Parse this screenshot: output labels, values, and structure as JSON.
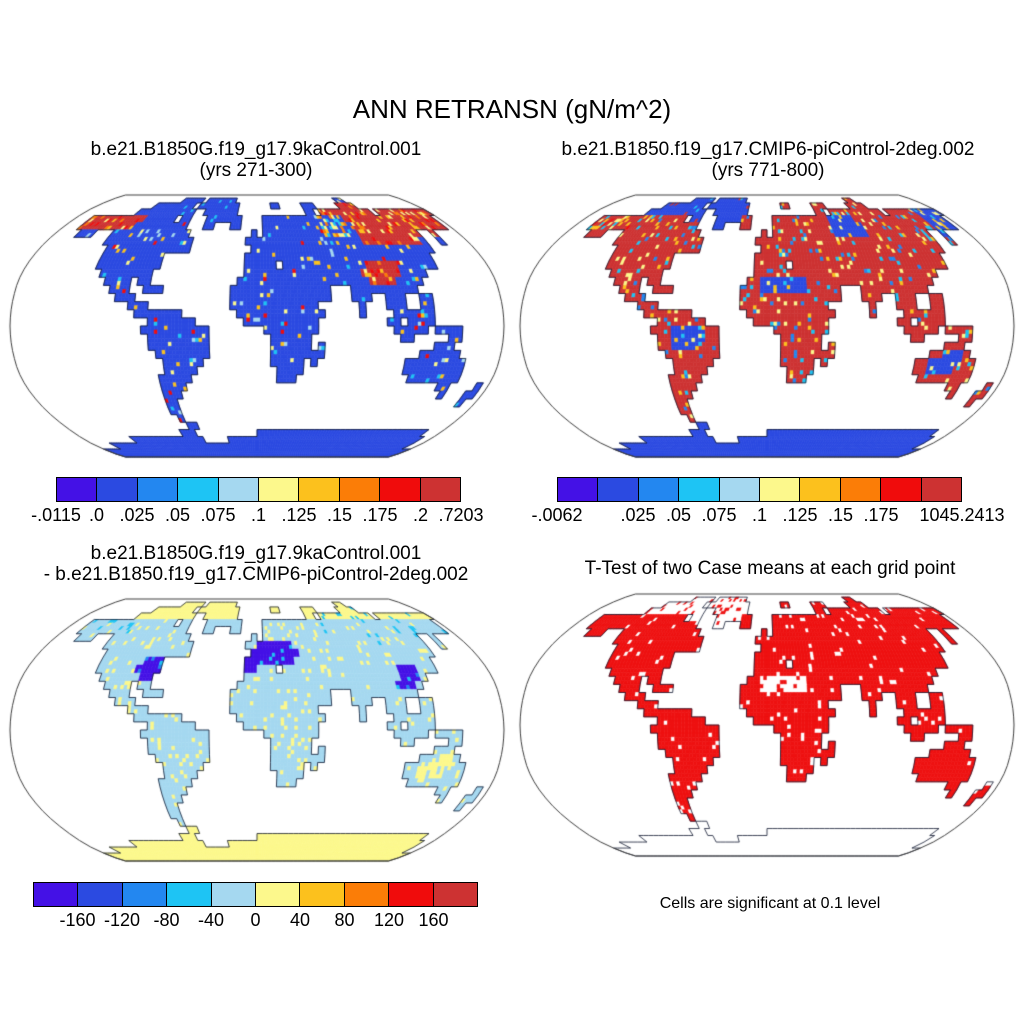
{
  "figure": {
    "title": "ANN RETRANSN (gN/m^2)"
  },
  "panels": [
    {
      "id": "case1",
      "title_lines": [
        "b.e21.B1850G.f19_g17.9kaControl.001",
        "(yrs 271-300)"
      ],
      "colorbar": {
        "labels": [
          "-.0115",
          ".0",
          ".025",
          ".05",
          ".075",
          ".1",
          ".125",
          ".15",
          ".175",
          ".2",
          ".7203"
        ],
        "positions": [
          0,
          1,
          2,
          3,
          4,
          5,
          6,
          7,
          8,
          9,
          10
        ]
      },
      "map": {
        "seed": 11,
        "base": {
          "L": "#2b4ae1",
          "n": "#cd3232",
          "t": "#cd3232",
          "k": "#cd3232",
          "p": "#cd3232",
          "w": "#2b4ae1",
          "e": "#2b4ae1",
          "f": "#2b4ae1",
          "h": "#2b4ae1",
          "g": "#2b4ae1",
          "s": "#2b4ae1",
          "z": "#2b4ae1",
          "u": "#2b4ae1",
          "a": "#2b4ae1"
        },
        "noise": [
          {
            "classes": "Lefhszu",
            "frac": 0.07,
            "colors": [
              "#1ec4f4",
              "#a5d8f0",
              "#fcf88c",
              "#fcc11d",
              "#f00c0c"
            ]
          },
          {
            "classes": "w",
            "frac": 0.45,
            "colors": [
              "#fcc11d",
              "#fcf88c",
              "#fb7d07",
              "#1ec4f4"
            ]
          },
          {
            "classes": "ntpk",
            "frac": 0.3,
            "colors": [
              "#fb7d07",
              "#fcc11d",
              "#f00c0c",
              "#fcf88c"
            ]
          },
          {
            "classes": "g",
            "frac": 0.04,
            "colors": [
              "#1ec4f4"
            ]
          }
        ]
      }
    },
    {
      "id": "case2",
      "title_lines": [
        "b.e21.B1850.f19_g17.CMIP6-piControl-2deg.002",
        "(yrs 771-800)"
      ],
      "colorbar": {
        "labels": [
          "-.0062",
          ".025",
          ".05",
          ".075",
          ".1",
          ".125",
          ".15",
          ".175",
          "1045.2413"
        ],
        "positions": [
          0,
          2,
          3,
          4,
          5,
          6,
          7,
          8,
          10
        ]
      },
      "map": {
        "seed": 22,
        "base": {
          "L": "#cd3232",
          "n": "#cd3232",
          "t": "#cd3232",
          "k": "#2b4ae1",
          "p": "#cd3232",
          "w": "#2b4ae1",
          "e": "#cd3232",
          "f": "#cd3232",
          "h": "#cd3232",
          "g": "#2b4ae1",
          "s": "#2b4ae1",
          "z": "#2b4ae1",
          "u": "#2b4ae1",
          "a": "#2b4ae1"
        },
        "noise": [
          {
            "classes": "Lefhtp",
            "frac": 0.13,
            "colors": [
              "#1ec4f4",
              "#fcf88c",
              "#fcc11d",
              "#2387f0"
            ]
          },
          {
            "classes": "n",
            "frac": 0.4,
            "colors": [
              "#1ec4f4",
              "#fcf88c",
              "#fcc11d",
              "#f00c0c"
            ]
          },
          {
            "classes": "szuwk",
            "frac": 0.17,
            "colors": [
              "#1ec4f4",
              "#fcf88c",
              "#fcc11d"
            ]
          },
          {
            "classes": "g",
            "frac": 0.06,
            "colors": [
              "#1ec4f4",
              "#cd3232"
            ]
          }
        ]
      }
    },
    {
      "id": "diff",
      "title_lines": [
        "b.e21.B1850G.f19_g17.9kaControl.001",
        "- b.e21.B1850.f19_g17.CMIP6-piControl-2deg.002"
      ],
      "colorbar": {
        "labels": [
          "-160",
          "-120",
          "-80",
          "-40",
          "0",
          "40",
          "80",
          "120",
          "160"
        ],
        "positions": [
          1,
          2,
          3,
          4,
          5,
          6,
          7,
          8,
          9
        ]
      },
      "map": {
        "seed": 33,
        "base": {
          "L": "#a5d8f0",
          "n": "#a5d8f0",
          "t": "#a5d8f0",
          "k": "#a5d8f0",
          "p": "#a5d8f0",
          "w": "#a5d8f0",
          "e": "#4411e6",
          "f": "#4411e6",
          "h": "#4411e6",
          "g": "#a5d8f0",
          "s": "#a5d8f0",
          "z": "#a5d8f0",
          "u": "#fcf88c",
          "a": "#fcf88c"
        },
        "latRule": {
          "minLat": 70,
          "classes": "Lgtkn",
          "color": "#fcf88c"
        },
        "noise": [
          {
            "classes": "Lsz",
            "frac": 0.1,
            "colors": [
              "#fcf88c"
            ]
          },
          {
            "classes": "tkwn",
            "frac": 0.12,
            "colors": [
              "#fcf88c",
              "#1ec4f4"
            ]
          },
          {
            "classes": "efh",
            "frac": 0.14,
            "colors": [
              "#2387f0",
              "#1ec4f4"
            ]
          },
          {
            "classes": "u",
            "frac": 0.25,
            "colors": [
              "#a5d8f0"
            ]
          }
        ]
      }
    },
    {
      "id": "ttest",
      "title_lines": [
        "T-Test of two Case means at each grid point"
      ],
      "caption": "Cells are significant at 0.1 level",
      "map": {
        "seed": 44,
        "base": {
          "L": "#ee1111",
          "n": "#ee1111",
          "t": "#ee1111",
          "k": "#ee1111",
          "p": "#ee1111",
          "w": "#ee1111",
          "e": "#ee1111",
          "f": "#ee1111",
          "h": "#ee1111",
          "g": "#ffffff",
          "s": "#ffffff",
          "z": "#ee1111",
          "u": "#ee1111",
          "a": "#ffffff"
        },
        "noise": [
          {
            "classes": "Lntkpwefhzu",
            "frac": 0.06,
            "colors": [
              "#ffffff"
            ]
          },
          {
            "classes": "gs",
            "frac": 0.2,
            "colors": [
              "#ee1111"
            ]
          }
        ]
      }
    }
  ],
  "palette": [
    "#4411e6",
    "#2b4ae1",
    "#2387f0",
    "#1ec4f4",
    "#a5d8f0",
    "#fcf88c",
    "#fcc11d",
    "#fb7d07",
    "#f00c0c",
    "#cd3232"
  ],
  "map_colors": {
    "coastline": "#101830",
    "projection_border": "#3c3c3c",
    "ocean": "#ffffff"
  },
  "land_rows": [
    [],
    [
      [
        18,
        22,
        "g"
      ],
      [
        24,
        30,
        "g"
      ],
      [
        55,
        56,
        "L"
      ]
    ],
    [
      [
        13,
        21,
        "g"
      ],
      [
        23,
        31,
        "g"
      ],
      [
        39,
        40,
        "L"
      ],
      [
        46,
        48,
        "L"
      ],
      [
        54,
        57,
        "t"
      ]
    ],
    [
      [
        11,
        22,
        "g"
      ],
      [
        25,
        31,
        "g"
      ],
      [
        46,
        47,
        "L"
      ],
      [
        49,
        59,
        "t"
      ],
      [
        61,
        66,
        "t"
      ],
      [
        67,
        71,
        "k"
      ]
    ],
    [
      [
        3,
        13,
        "n"
      ],
      [
        14,
        19,
        "L"
      ],
      [
        21,
        22,
        "g"
      ],
      [
        26,
        30,
        "g"
      ],
      [
        31,
        32,
        "L"
      ],
      [
        37,
        47,
        "L"
      ],
      [
        48,
        52,
        "w"
      ],
      [
        53,
        66,
        "t"
      ],
      [
        67,
        70,
        "k"
      ]
    ],
    [
      [
        3,
        12,
        "n"
      ],
      [
        13,
        22,
        "L"
      ],
      [
        26,
        27,
        "g"
      ],
      [
        31,
        32,
        "L"
      ],
      [
        37,
        47,
        "L"
      ],
      [
        48,
        53,
        "w"
      ],
      [
        54,
        66,
        "t"
      ],
      [
        67,
        70,
        "k"
      ]
    ],
    [
      [
        4,
        6,
        "L"
      ],
      [
        10,
        23,
        "L"
      ],
      [
        35,
        35,
        "L"
      ],
      [
        37,
        47,
        "L"
      ],
      [
        48,
        53,
        "w"
      ],
      [
        54,
        64,
        "t"
      ],
      [
        67,
        67,
        "k"
      ]
    ],
    [
      [
        10,
        24,
        "L"
      ],
      [
        34,
        35,
        "L"
      ],
      [
        36,
        41,
        "e"
      ],
      [
        42,
        53,
        "L"
      ],
      [
        54,
        63,
        "t"
      ],
      [
        64,
        64,
        "L"
      ],
      [
        67,
        67,
        "L"
      ]
    ],
    [
      [
        11,
        24,
        "L"
      ],
      [
        35,
        42,
        "e"
      ],
      [
        43,
        64,
        "L"
      ]
    ],
    [
      [
        11,
        17,
        "L"
      ],
      [
        18,
        20,
        "f"
      ],
      [
        34,
        41,
        "e"
      ],
      [
        42,
        63,
        "L"
      ]
    ],
    [
      [
        11,
        16,
        "L"
      ],
      [
        17,
        20,
        "f"
      ],
      [
        34,
        35,
        "e"
      ],
      [
        36,
        38,
        "L"
      ],
      [
        40,
        52,
        "L"
      ],
      [
        53,
        57,
        "p"
      ],
      [
        58,
        60,
        "h"
      ],
      [
        61,
        63,
        "L"
      ]
    ],
    [
      [
        12,
        17,
        "L"
      ],
      [
        18,
        19,
        "f"
      ],
      [
        34,
        51,
        "L"
      ],
      [
        52,
        57,
        "p"
      ],
      [
        58,
        60,
        "h"
      ],
      [
        61,
        61,
        "L"
      ]
    ],
    [
      [
        13,
        16,
        "L"
      ],
      [
        18,
        19,
        "L"
      ],
      [
        33,
        34,
        "L"
      ],
      [
        35,
        41,
        "s"
      ],
      [
        42,
        52,
        "L"
      ],
      [
        53,
        56,
        "p"
      ],
      [
        57,
        59,
        "h"
      ],
      [
        60,
        60,
        "L"
      ]
    ],
    [
      [
        14,
        16,
        "L"
      ],
      [
        19,
        21,
        "L"
      ],
      [
        32,
        34,
        "L"
      ],
      [
        35,
        41,
        "s"
      ],
      [
        42,
        46,
        "L"
      ],
      [
        50,
        59,
        "L"
      ]
    ],
    [
      [
        15,
        17,
        "L"
      ],
      [
        32,
        46,
        "L"
      ],
      [
        50,
        52,
        "L"
      ],
      [
        55,
        57,
        "L"
      ],
      [
        60,
        61,
        "L"
      ]
    ],
    [
      [
        17,
        19,
        "L"
      ],
      [
        32,
        44,
        "L"
      ],
      [
        51,
        51,
        "L"
      ],
      [
        55,
        57,
        "L"
      ],
      [
        60,
        61,
        "L"
      ]
    ],
    [
      [
        18,
        24,
        "L"
      ],
      [
        33,
        45,
        "L"
      ],
      [
        51,
        51,
        "L"
      ],
      [
        56,
        61,
        "L"
      ]
    ],
    [
      [
        20,
        26,
        "L"
      ],
      [
        34,
        44,
        "L"
      ],
      [
        55,
        56,
        "L"
      ],
      [
        58,
        61,
        "L"
      ]
    ],
    [
      [
        19,
        21,
        "L"
      ],
      [
        22,
        26,
        "z"
      ],
      [
        27,
        28,
        "L"
      ],
      [
        37,
        44,
        "L"
      ],
      [
        56,
        60,
        "L"
      ],
      [
        62,
        65,
        "L"
      ]
    ],
    [
      [
        20,
        21,
        "L"
      ],
      [
        22,
        26,
        "z"
      ],
      [
        27,
        28,
        "L"
      ],
      [
        38,
        43,
        "L"
      ],
      [
        57,
        58,
        "L"
      ],
      [
        64,
        65,
        "L"
      ]
    ],
    [
      [
        20,
        21,
        "L"
      ],
      [
        22,
        25,
        "z"
      ],
      [
        26,
        28,
        "L"
      ],
      [
        38,
        43,
        "L"
      ],
      [
        45,
        45,
        "L"
      ],
      [
        62,
        64,
        "L"
      ]
    ],
    [
      [
        21,
        28,
        "L"
      ],
      [
        38,
        45,
        "L"
      ],
      [
        60,
        61,
        "L"
      ],
      [
        62,
        64,
        "u"
      ],
      [
        65,
        65,
        "L"
      ]
    ],
    [
      [
        22,
        27,
        "L"
      ],
      [
        38,
        42,
        "L"
      ],
      [
        44,
        44,
        "L"
      ],
      [
        58,
        59,
        "L"
      ],
      [
        60,
        64,
        "u"
      ],
      [
        65,
        66,
        "L"
      ]
    ],
    [
      [
        22,
        26,
        "L"
      ],
      [
        39,
        42,
        "L"
      ],
      [
        58,
        59,
        "L"
      ],
      [
        60,
        63,
        "u"
      ],
      [
        64,
        66,
        "L"
      ]
    ],
    [
      [
        21,
        25,
        "L"
      ],
      [
        39,
        41,
        "L"
      ],
      [
        59,
        66,
        "L"
      ]
    ],
    [
      [
        21,
        24,
        "L"
      ],
      [
        64,
        65,
        "L"
      ],
      [
        70,
        70,
        "L"
      ]
    ],
    [
      [
        21,
        23,
        "L"
      ],
      [
        65,
        65,
        "L"
      ],
      [
        69,
        70,
        "L"
      ]
    ],
    [
      [
        21,
        22,
        "L"
      ],
      [
        69,
        69,
        "L"
      ]
    ],
    [
      [
        21,
        22,
        "L"
      ]
    ],
    [
      [
        22,
        22,
        "L"
      ]
    ],
    [
      [
        23,
        24,
        "a"
      ]
    ],
    [
      [
        21,
        23,
        "a"
      ],
      [
        36,
        68,
        "a"
      ]
    ],
    [
      [
        10,
        24,
        "a"
      ],
      [
        30,
        69,
        "a"
      ]
    ],
    [
      [
        4,
        69,
        "a"
      ]
    ],
    [
      [
        0,
        71,
        "a"
      ]
    ],
    [
      [
        0,
        71,
        "a"
      ]
    ]
  ],
  "chart_data": [
    {
      "type": "heatmap",
      "subtype": "global-lat-lon-map",
      "projection": "robinson",
      "variable": "ANN RETRANSN",
      "units": "gN/m^2",
      "title": "b.e21.B1850G.f19_g17.9kaControl.001 (yrs 271-300)",
      "colorbar_ticks": [
        -0.0115,
        0.0,
        0.025,
        0.05,
        0.075,
        0.1,
        0.125,
        0.15,
        0.175,
        0.2,
        0.7203
      ],
      "colorbar_colors": [
        "#4411e6",
        "#2b4ae1",
        "#2387f0",
        "#1ec4f4",
        "#a5d8f0",
        "#fcf88c",
        "#fcc11d",
        "#fb7d07",
        "#f00c0c",
        "#cd3232"
      ],
      "data_min": -0.0115,
      "data_max": 0.7203,
      "description": "Land mostly 0-0.025 (blue); high values (red/orange, >0.175) over NE Siberia, Tibetan Plateau, NW Canada/Alaska, Andes; ocean masked white."
    },
    {
      "type": "heatmap",
      "subtype": "global-lat-lon-map",
      "projection": "robinson",
      "variable": "ANN RETRANSN",
      "units": "gN/m^2",
      "title": "b.e21.B1850.f19_g17.CMIP6-piControl-2deg.002 (yrs 771-800)",
      "colorbar_ticks": [
        -0.0062,
        0.025,
        0.05,
        0.075,
        0.1,
        0.125,
        0.15,
        0.175,
        1045.2413
      ],
      "colorbar_colors": [
        "#4411e6",
        "#2b4ae1",
        "#2387f0",
        "#1ec4f4",
        "#a5d8f0",
        "#fcf88c",
        "#fcc11d",
        "#fb7d07",
        "#f00c0c",
        "#cd3232"
      ],
      "data_min": -0.0062,
      "data_max": 1045.2413,
      "description": "Land mostly >0.2 (dark red); low values (blue) over Greenland, Canadian Arctic, central Sahara, Amazon interior, central Australia, Chukotka, Antarctica."
    },
    {
      "type": "heatmap",
      "subtype": "global-lat-lon-map",
      "projection": "robinson",
      "variable": "ANN RETRANSN difference",
      "units": "gN/m^2",
      "title": "b.e21.B1850G.f19_g17.9kaControl.001 - b.e21.B1850.f19_g17.CMIP6-piControl-2deg.002",
      "colorbar_ticks": [
        -160,
        -120,
        -80,
        -40,
        0,
        40,
        80,
        120,
        160
      ],
      "colorbar_colors": [
        "#4411e6",
        "#2b4ae1",
        "#2387f0",
        "#1ec4f4",
        "#a5d8f0",
        "#fcf88c",
        "#fcc11d",
        "#fb7d07",
        "#f00c0c",
        "#cd3232"
      ],
      "description": "Most land slightly negative (light blue, -40 to 0); strongly negative (dark indigo) over Europe, eastern US, eastern China; weakly positive (pale yellow) over Antarctica, Arctic coasts, Sahara and central Australia."
    },
    {
      "type": "heatmap",
      "subtype": "significance-mask-map",
      "projection": "robinson",
      "title": "T-Test of two Case means at each grid point",
      "note": "Cells are significant at 0.1 level",
      "significant_color": "#ee1111",
      "description": "Nearly all vegetated land significant (red); non-significant gaps over central Sahara, Greenland interior, Canadian Arctic and scattered cells; Antarctica outlined only."
    }
  ]
}
